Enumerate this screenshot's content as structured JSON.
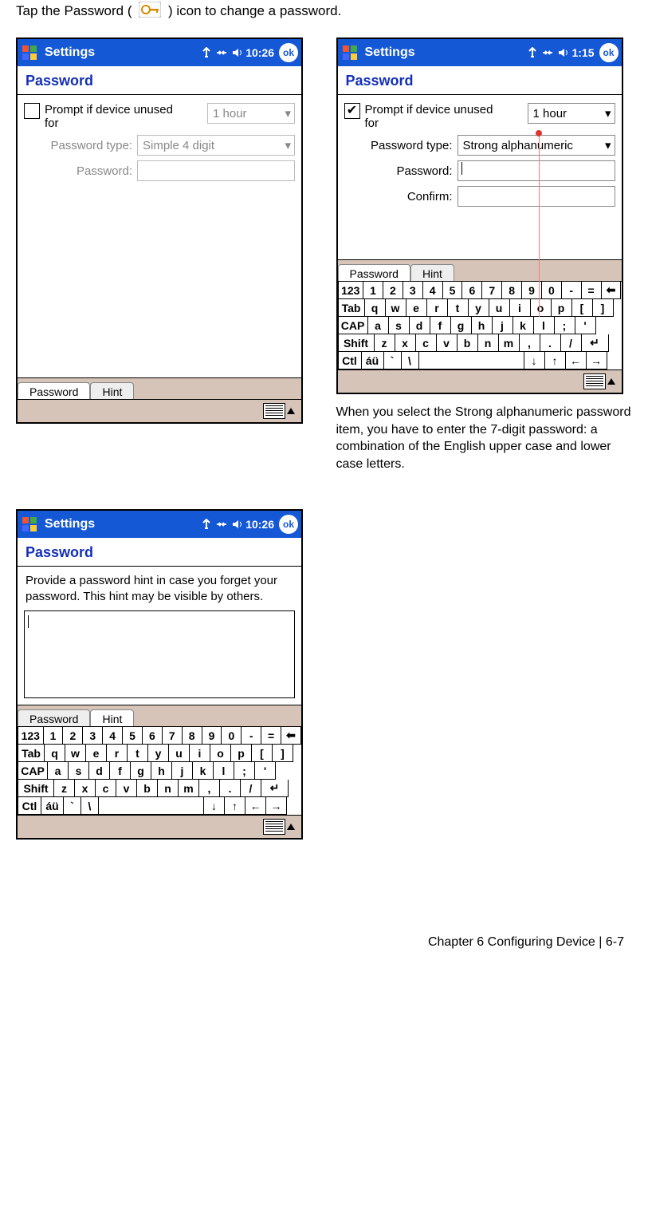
{
  "intro": {
    "before": "Tap the Password (",
    "after": ") icon to change a password."
  },
  "screen1": {
    "title": "Settings",
    "time": "10:26",
    "heading": "Password",
    "prompt_checked": false,
    "prompt_label1": "Prompt if device unused",
    "prompt_label2": "for",
    "duration": "1 hour",
    "type_label": "Password type:",
    "type_value": "Simple 4 digit",
    "pwd_label": "Password:",
    "tabs": [
      "Password",
      "Hint"
    ],
    "active_tab": 0
  },
  "screen2": {
    "title": "Settings",
    "time": "1:15",
    "heading": "Password",
    "prompt_checked": true,
    "prompt_label1": "Prompt if device unused",
    "prompt_label2": "for",
    "duration": "1 hour",
    "type_label": "Password type:",
    "type_value": "Strong alphanumeric",
    "pwd_label": "Password:",
    "confirm_label": "Confirm:",
    "tabs": [
      "Password",
      "Hint"
    ],
    "active_tab": 0,
    "caption": "When you select the Strong alphanumeric password item, you have to enter the 7-digit password: a combination of the English upper case and lower case letters."
  },
  "screen3": {
    "title": "Settings",
    "time": "10:26",
    "heading": "Password",
    "hint_text": "Provide a password hint in case you forget your password.  This hint may be visible by others.",
    "tabs": [
      "Password",
      "Hint"
    ],
    "active_tab": 1
  },
  "keyboard": {
    "rows": [
      [
        "123",
        "1",
        "2",
        "3",
        "4",
        "5",
        "6",
        "7",
        "8",
        "9",
        "0",
        "-",
        "=",
        "⬅"
      ],
      [
        "Tab",
        "q",
        "w",
        "e",
        "r",
        "t",
        "y",
        "u",
        "i",
        "o",
        "p",
        "[",
        "]"
      ],
      [
        "CAP",
        "a",
        "s",
        "d",
        "f",
        "g",
        "h",
        "j",
        "k",
        "l",
        ";",
        "'"
      ],
      [
        "Shift",
        "z",
        "x",
        "c",
        "v",
        "b",
        "n",
        "m",
        ",",
        ".",
        "/",
        "↵"
      ],
      [
        "Ctl",
        "áü",
        "`",
        "\\",
        " ",
        "↓",
        "↑",
        "←",
        "→"
      ]
    ],
    "widths": {
      "123": 34,
      "Tab": 34,
      "CAP": 38,
      "Shift": 46,
      "Ctl": 30,
      "std": 26,
      "back": 26,
      "enter": 34,
      "space": 132,
      "arrow": 26,
      "au": 28,
      "grave": 22,
      "bslash": 22
    }
  },
  "footer": "Chapter 6 Configuring Device  |  6-7",
  "colors": {
    "titlebar": "#1558d6",
    "heading_text": "#1530b8",
    "tabbg": "#d6c4b8"
  }
}
